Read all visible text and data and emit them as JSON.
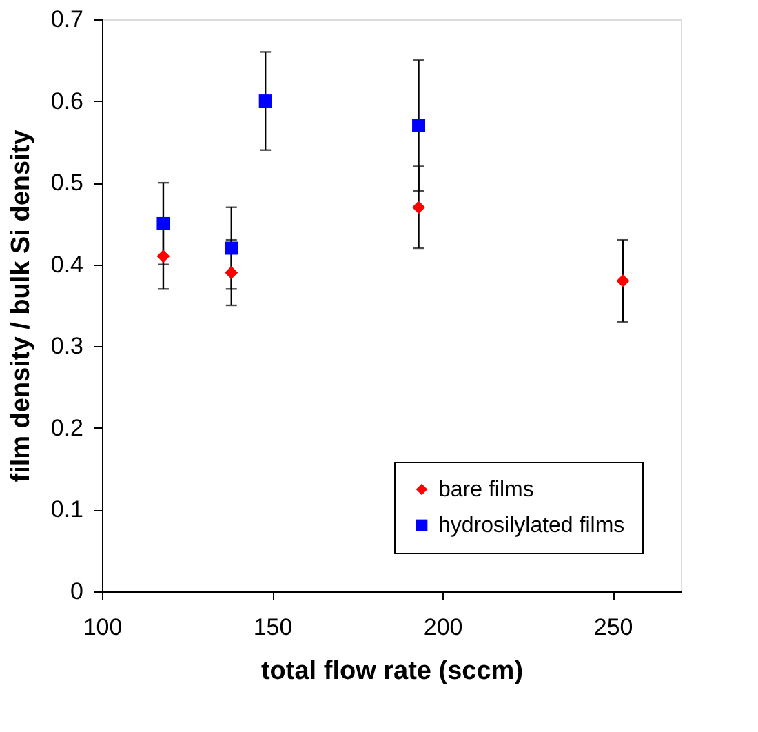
{
  "chart_data": {
    "type": "scatter",
    "xlabel": "total flow rate (sccm)",
    "ylabel": "film density / bulk Si density",
    "series": [
      {
        "name": "bare films",
        "color": "#ff0000",
        "marker": "diamond",
        "x": [
          118,
          138,
          193,
          253
        ],
        "values": [
          0.41,
          0.39,
          0.47,
          0.38
        ],
        "errors": [
          0.04,
          0.04,
          0.05,
          0.05
        ]
      },
      {
        "name": "hydrosilylated films",
        "color": "#0000ff",
        "marker": "square",
        "x": [
          118,
          138,
          148,
          193
        ],
        "values": [
          0.45,
          0.42,
          0.6,
          0.57
        ],
        "errors": [
          0.05,
          0.05,
          0.06,
          0.08
        ]
      }
    ],
    "xlim": [
      100,
      270
    ],
    "xticks": [
      100,
      150,
      200,
      250
    ],
    "ylim": [
      0,
      0.7
    ],
    "yticks": [
      0,
      0.1,
      0.2,
      0.3,
      0.4,
      0.5,
      0.6,
      0.7
    ],
    "grid": false,
    "legend": "bottom right"
  }
}
